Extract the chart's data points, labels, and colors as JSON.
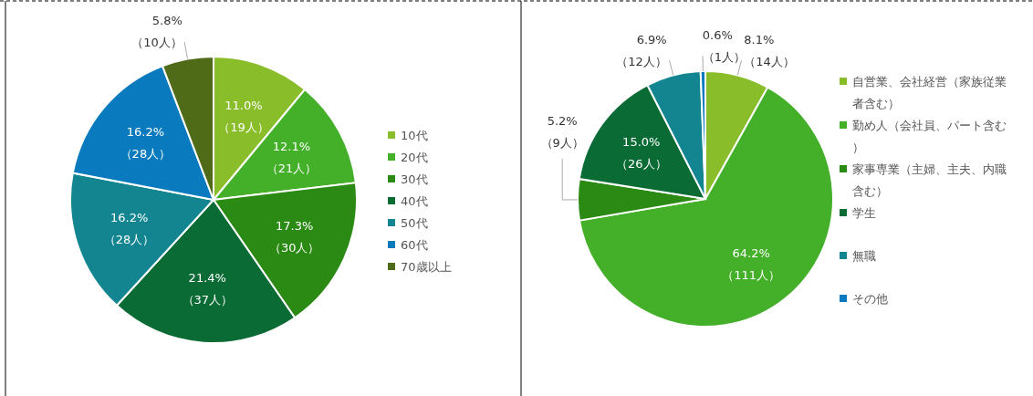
{
  "chart_data": [
    {
      "type": "pie",
      "legend": "right",
      "categories": [
        "10代",
        "20代",
        "30代",
        "40代",
        "50代",
        "60代",
        "70歳以上"
      ],
      "values": [
        11.0,
        12.1,
        17.3,
        21.4,
        16.2,
        16.2,
        5.8
      ],
      "colors": [
        "#8abd2a",
        "#44b02a",
        "#2a8a14",
        "#0b6b35",
        "#138591",
        "#0a7abf",
        "#4f6b17"
      ],
      "value_labels": [
        "11.0%（19人）",
        "12.1%（21人）",
        "17.3%（30人）",
        "21.4%（37人）",
        "16.2%（28人）",
        "16.2%（28人）",
        "5.8%（10人）"
      ]
    },
    {
      "type": "pie",
      "legend": "right",
      "categories": [
        "自営業、会社経営（家族従業者含む）",
        "勤め人（会社員、パート含む）",
        "家事専業（主婦、主夫、内職含む）",
        "学生",
        "無職",
        "その他"
      ],
      "values": [
        8.1,
        64.2,
        5.2,
        15.0,
        6.9,
        0.6
      ],
      "colors": [
        "#8abd2a",
        "#44b02a",
        "#2a8a14",
        "#0b6b35",
        "#138591",
        "#0a7abf"
      ],
      "value_labels": [
        "8.1%（14人）",
        "64.2%（111人）",
        "5.2%（9人）",
        "15.0%（26人）",
        "6.9%（12人）",
        "0.6%（1人）"
      ]
    }
  ]
}
